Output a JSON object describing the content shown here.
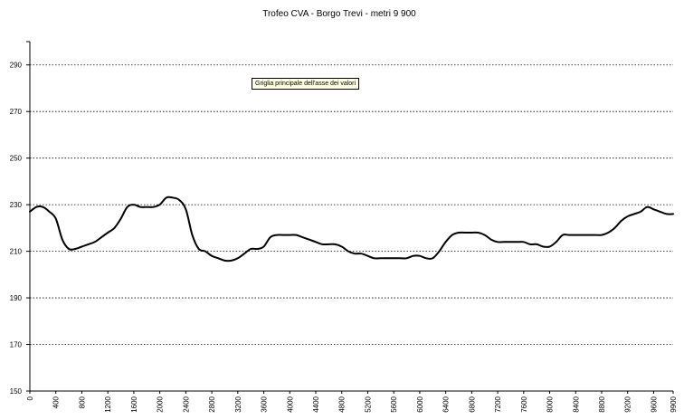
{
  "chart_data": {
    "type": "line",
    "title": "Trofeo CVA - Borgo Trevi - metri 9 900",
    "xlabel": "",
    "ylabel": "",
    "x_ticks": [
      "0",
      "400",
      "800",
      "1200",
      "1600",
      "2000",
      "2400",
      "2800",
      "3200",
      "3600",
      "4000",
      "4400",
      "4800",
      "5200",
      "5600",
      "6000",
      "6400",
      "6800",
      "7200",
      "7600",
      "8000",
      "8400",
      "8800",
      "9200",
      "9600",
      "9900"
    ],
    "y_ticks": [
      "150",
      "170",
      "190",
      "210",
      "230",
      "250",
      "270",
      "290"
    ],
    "ylim": [
      150,
      300
    ],
    "xlim": [
      0,
      9900
    ],
    "grid": "horizontal dotted",
    "legend": "none",
    "tooltip": "Griglia principale dell'asse dei valori",
    "series": [
      {
        "values": [
          [
            0,
            227
          ],
          [
            100,
            229
          ],
          [
            200,
            229
          ],
          [
            300,
            227
          ],
          [
            400,
            224
          ],
          [
            500,
            215
          ],
          [
            600,
            211
          ],
          [
            700,
            211
          ],
          [
            800,
            212
          ],
          [
            900,
            213
          ],
          [
            1000,
            214
          ],
          [
            1100,
            216
          ],
          [
            1200,
            218
          ],
          [
            1300,
            220
          ],
          [
            1400,
            224
          ],
          [
            1500,
            229
          ],
          [
            1600,
            230
          ],
          [
            1700,
            229
          ],
          [
            1800,
            229
          ],
          [
            1900,
            229
          ],
          [
            2000,
            230
          ],
          [
            2100,
            233
          ],
          [
            2200,
            233
          ],
          [
            2300,
            232
          ],
          [
            2400,
            228
          ],
          [
            2500,
            217
          ],
          [
            2600,
            211
          ],
          [
            2700,
            210
          ],
          [
            2800,
            208
          ],
          [
            2900,
            207
          ],
          [
            3000,
            206
          ],
          [
            3100,
            206
          ],
          [
            3200,
            207
          ],
          [
            3300,
            209
          ],
          [
            3400,
            211
          ],
          [
            3500,
            211
          ],
          [
            3600,
            212
          ],
          [
            3700,
            216
          ],
          [
            3800,
            217
          ],
          [
            3900,
            217
          ],
          [
            4000,
            217
          ],
          [
            4100,
            217
          ],
          [
            4200,
            216
          ],
          [
            4300,
            215
          ],
          [
            4400,
            214
          ],
          [
            4500,
            213
          ],
          [
            4600,
            213
          ],
          [
            4700,
            213
          ],
          [
            4800,
            212
          ],
          [
            4900,
            210
          ],
          [
            5000,
            209
          ],
          [
            5100,
            209
          ],
          [
            5200,
            208
          ],
          [
            5300,
            207
          ],
          [
            5400,
            207
          ],
          [
            5500,
            207
          ],
          [
            5600,
            207
          ],
          [
            5700,
            207
          ],
          [
            5800,
            207
          ],
          [
            5900,
            208
          ],
          [
            6000,
            208
          ],
          [
            6100,
            207
          ],
          [
            6200,
            207
          ],
          [
            6300,
            210
          ],
          [
            6400,
            214
          ],
          [
            6500,
            217
          ],
          [
            6600,
            218
          ],
          [
            6700,
            218
          ],
          [
            6800,
            218
          ],
          [
            6900,
            218
          ],
          [
            7000,
            217
          ],
          [
            7100,
            215
          ],
          [
            7200,
            214
          ],
          [
            7300,
            214
          ],
          [
            7400,
            214
          ],
          [
            7500,
            214
          ],
          [
            7600,
            214
          ],
          [
            7700,
            213
          ],
          [
            7800,
            213
          ],
          [
            7900,
            212
          ],
          [
            8000,
            212
          ],
          [
            8100,
            214
          ],
          [
            8200,
            217
          ],
          [
            8300,
            217
          ],
          [
            8400,
            217
          ],
          [
            8500,
            217
          ],
          [
            8600,
            217
          ],
          [
            8700,
            217
          ],
          [
            8800,
            217
          ],
          [
            8900,
            218
          ],
          [
            9000,
            220
          ],
          [
            9100,
            223
          ],
          [
            9200,
            225
          ],
          [
            9300,
            226
          ],
          [
            9400,
            227
          ],
          [
            9500,
            229
          ],
          [
            9600,
            228
          ],
          [
            9700,
            227
          ],
          [
            9800,
            226
          ],
          [
            9900,
            226
          ]
        ],
        "color": "#000000"
      }
    ]
  }
}
